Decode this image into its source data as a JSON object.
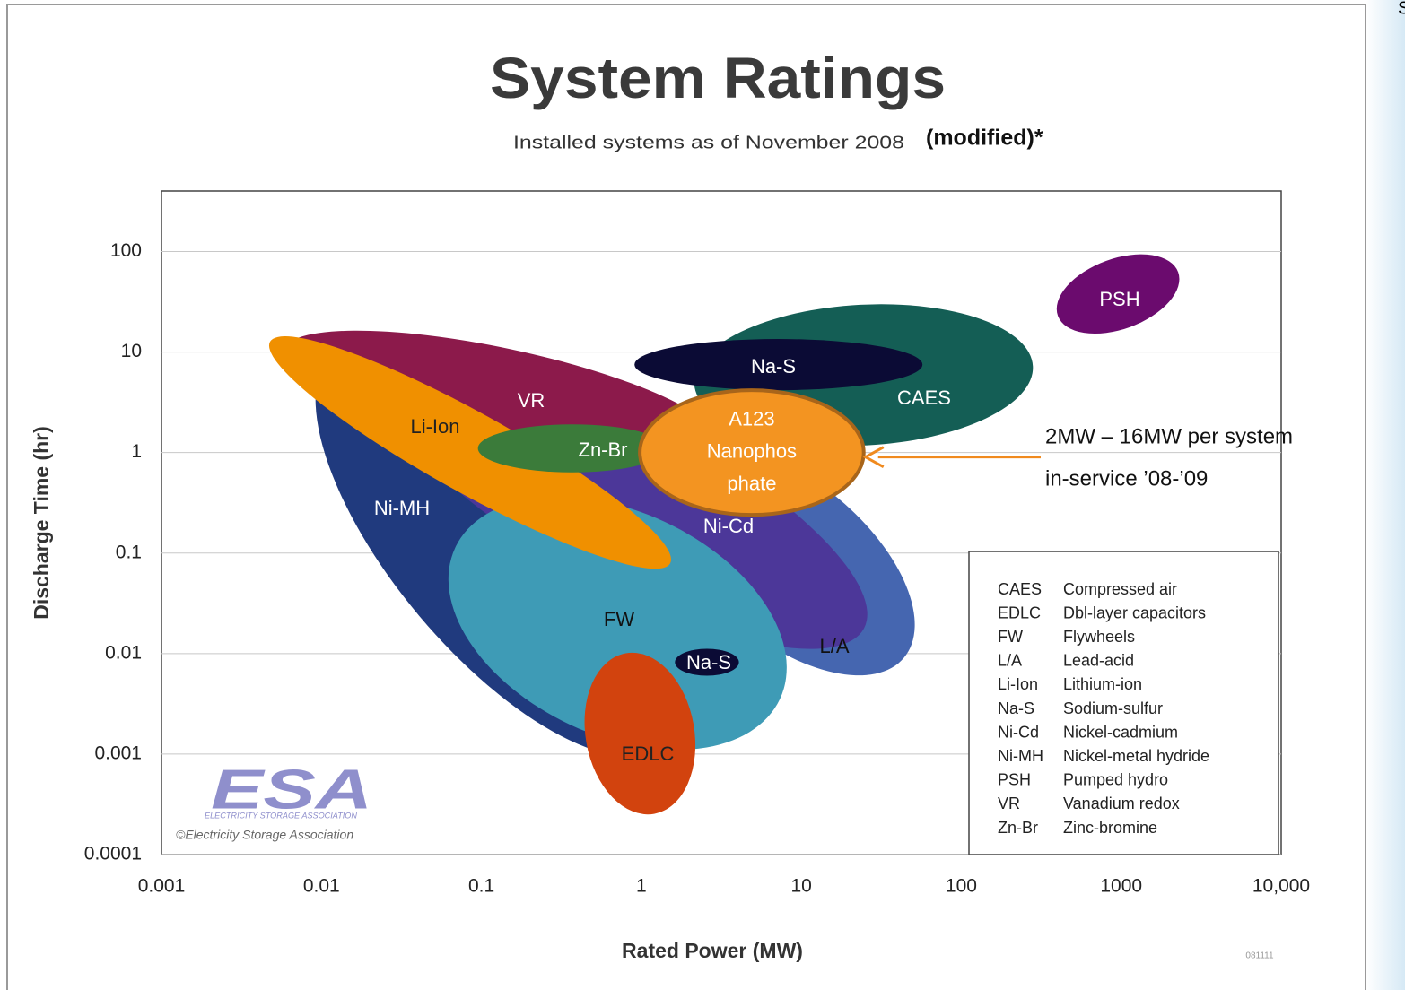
{
  "chart_data": {
    "type": "region",
    "title": "System Ratings",
    "subtitle": "Installed systems as of November 2008",
    "subtitle_note": "(modified)*",
    "corner_text": "S",
    "x_label": "Rated Power (MW)",
    "y_label": "Discharge Time (hr)",
    "xscale": "log",
    "yscale": "log",
    "xlim": [
      0.001,
      10000
    ],
    "ylim": [
      0.0001,
      400
    ],
    "xticks": [
      0.001,
      0.01,
      0.1,
      1,
      10,
      100,
      1000,
      {
        "value": 10000,
        "label": "10,000"
      }
    ],
    "yticks": [
      0.0001,
      0.001,
      0.01,
      0.1,
      1,
      10,
      100
    ],
    "grid": true,
    "regions": [
      {
        "name": "Ni-MH",
        "color": "#203a7e",
        "x": 0.133,
        "y": 0.115,
        "rx": 1.62,
        "ry": 0.67,
        "angle": 50
      },
      {
        "name": "L/A",
        "color": "#4566b0",
        "x": 8.2,
        "y": 0.085,
        "rx": 0.95,
        "ry": 0.5,
        "angle": 40
      },
      {
        "name": "Ni-Cd",
        "color": "#4c3799",
        "x": 0.81,
        "y": 0.32,
        "rx": 1.68,
        "ry": 0.53,
        "angle": 28
      },
      {
        "name": "FW",
        "color": "#3e9bb6",
        "x": 0.71,
        "y": 0.02,
        "rx": 1.12,
        "ry": 0.7,
        "angle": 25
      },
      {
        "name": "VR",
        "color": "#8c1a4b",
        "x": 0.133,
        "y": 3.5,
        "rx": 1.4,
        "ry": 0.31,
        "angle": 12
      },
      {
        "name": "Li-Ion",
        "color": "#f09000",
        "x": 0.085,
        "y": 1.0,
        "rx": 1.43,
        "ry": 0.25,
        "angle": 29
      },
      {
        "name": "Zn-Br",
        "color": "#3b7b3a",
        "x": 0.37,
        "y": 1.1,
        "rx": 0.59,
        "ry": 0.15,
        "angle": 0
      },
      {
        "name": "CAES",
        "color": "#145e55",
        "x": 24.5,
        "y": 5.9,
        "rx": 1.06,
        "ry": 0.44,
        "angle": -3
      },
      {
        "name": "Na-S",
        "color": "#0b0b35",
        "x": 7.2,
        "y": 7.5,
        "rx": 0.9,
        "ry": 0.16,
        "angle": 0
      },
      {
        "name": "PSH",
        "color": "#6b0b6e",
        "x": 955,
        "y": 37.8,
        "rx": 0.4,
        "ry": 0.22,
        "angle": -20
      },
      {
        "name": "EDLC",
        "color": "#d2430e",
        "x": 0.98,
        "y": 0.0016,
        "rx": 0.34,
        "ry": 0.51,
        "angle": -10
      },
      {
        "name": "Na-S",
        "color": "#0b0b35",
        "x": 2.57,
        "y": 0.0082,
        "rx": 0.2,
        "ry": 0.084,
        "angle": 0
      }
    ],
    "highlight": {
      "lines": [
        "A123",
        "Nanophos",
        "phate"
      ],
      "color": "#f39421",
      "x": 4.9,
      "y": 1.0,
      "rx": 0.7,
      "ry": 0.39,
      "annotation": [
        "2MW – 16MW per system",
        "in-service ’08-’09"
      ]
    },
    "legend": [
      {
        "abbr": "CAES",
        "desc": "Compressed air"
      },
      {
        "abbr": "EDLC",
        "desc": "Dbl-layer capacitors"
      },
      {
        "abbr": "FW",
        "desc": "Flywheels"
      },
      {
        "abbr": "L/A",
        "desc": "Lead-acid"
      },
      {
        "abbr": "Li-Ion",
        "desc": "Lithium-ion"
      },
      {
        "abbr": "Na-S",
        "desc": "Sodium-sulfur"
      },
      {
        "abbr": "Ni-Cd",
        "desc": "Nickel-cadmium"
      },
      {
        "abbr": "Ni-MH",
        "desc": "Nickel-metal hydride"
      },
      {
        "abbr": "PSH",
        "desc": "Pumped hydro"
      },
      {
        "abbr": "VR",
        "desc": "Vanadium redox"
      },
      {
        "abbr": "Zn-Br",
        "desc": "Zinc-bromine"
      }
    ],
    "logo": {
      "mark": "ESA",
      "name": "ELECTRICITY STORAGE ASSOCIATION",
      "copyright": "©Electricity Storage Association"
    },
    "code": "081111"
  }
}
